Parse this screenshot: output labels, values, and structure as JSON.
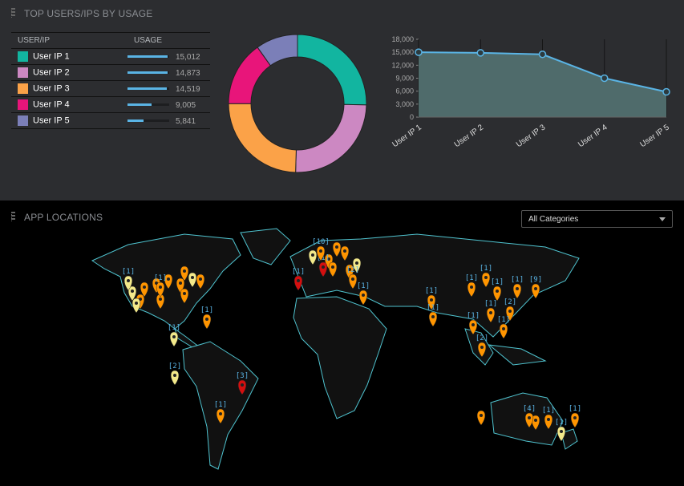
{
  "top_panel": {
    "title": "TOP USERS/IPS BY USAGE",
    "col_user": "USER/IP",
    "col_usage": "USAGE",
    "rows": [
      {
        "label": "User IP 1",
        "value": 15012,
        "display": "15,012",
        "color": "#12b5a0"
      },
      {
        "label": "User IP 2",
        "value": 14873,
        "display": "14,873",
        "color": "#cc88c2"
      },
      {
        "label": "User IP 3",
        "value": 14519,
        "display": "14,519",
        "color": "#fba248"
      },
      {
        "label": "User IP 4",
        "value": 9005,
        "display": "9,005",
        "color": "#e8157a"
      },
      {
        "label": "User IP 5",
        "value": 5841,
        "display": "5,841",
        "color": "#7b7fb8"
      }
    ]
  },
  "chart_data": [
    {
      "type": "pie",
      "variant": "donut",
      "categories": [
        "User IP 1",
        "User IP 2",
        "User IP 3",
        "User IP 4",
        "User IP 5"
      ],
      "values": [
        15012,
        14873,
        14519,
        9005,
        5841
      ]
    },
    {
      "type": "area",
      "categories": [
        "User IP 1",
        "User IP 2",
        "User IP 3",
        "User IP 4",
        "User IP 5"
      ],
      "values": [
        15012,
        14873,
        14519,
        9005,
        5841
      ],
      "ylim": [
        0,
        18000
      ],
      "yticks": [
        "0",
        "3,000",
        "6,000",
        "9,000",
        "12,000",
        "15,000",
        "18,000"
      ]
    }
  ],
  "map_panel": {
    "title": "APP LOCATIONS",
    "category_select": "All Categories",
    "markers": [
      {
        "label": "[1]",
        "status": "orange"
      },
      {
        "label": "[1]",
        "status": "yellow"
      },
      {
        "label": "[2]",
        "status": "yellow"
      },
      {
        "label": "[1]",
        "status": "orange"
      },
      {
        "label": "[3]",
        "status": "red"
      },
      {
        "label": "[1]",
        "status": "orange"
      },
      {
        "label": "[1]",
        "status": "orange"
      },
      {
        "label": "[1]",
        "status": "orange"
      },
      {
        "label": "[1]",
        "status": "orange"
      },
      {
        "label": "[1]",
        "status": "orange"
      },
      {
        "label": "[1]",
        "status": "orange"
      },
      {
        "label": "[2]",
        "status": "orange"
      },
      {
        "label": "[1]",
        "status": "orange"
      },
      {
        "label": "[1]",
        "status": "orange"
      },
      {
        "label": "[9]",
        "status": "orange"
      },
      {
        "label": "[1]",
        "status": "orange"
      },
      {
        "label": "[2]",
        "status": "orange"
      },
      {
        "label": "[4]",
        "status": "orange"
      },
      {
        "label": "[1]",
        "status": "orange"
      },
      {
        "label": "[1]",
        "status": "orange"
      },
      {
        "label": "[1]",
        "status": "yellow"
      },
      {
        "label": "[1]",
        "status": "orange"
      },
      {
        "label": "[2]",
        "status": "orange"
      },
      {
        "label": "[1]",
        "status": "red"
      },
      {
        "label": "[1]",
        "status": "red"
      },
      {
        "label": "[10]",
        "status": "orange"
      },
      {
        "label": "[1]",
        "status": "yellow"
      },
      {
        "label": "[1]",
        "status": "orange"
      }
    ],
    "colors": {
      "orange": "#ff9500",
      "yellow": "#f3e98a",
      "red": "#d40f0f",
      "coast": "#4fc3cf",
      "land": "#111"
    }
  }
}
